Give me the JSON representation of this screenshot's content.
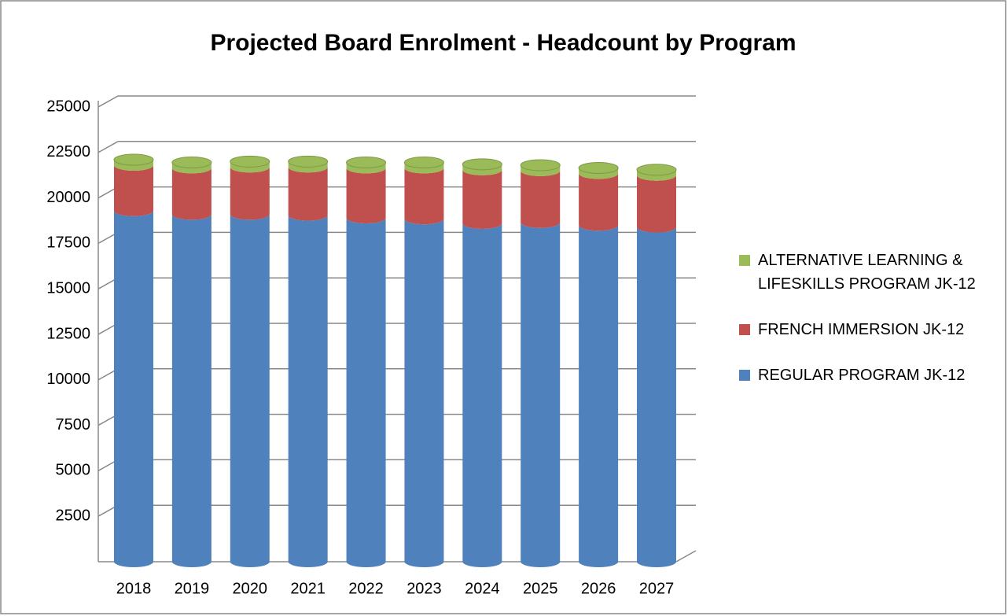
{
  "chart_data": {
    "type": "bar",
    "stacked": true,
    "title": "Projected Board Enrolment - Headcount by Program",
    "categories": [
      "2018",
      "2019",
      "2020",
      "2021",
      "2022",
      "2023",
      "2024",
      "2025",
      "2026",
      "2027"
    ],
    "series": [
      {
        "name": "REGULAR PROGRAM JK-12",
        "color": "#4f81bd",
        "values": [
          19300,
          19100,
          19100,
          19050,
          18900,
          18850,
          18600,
          18650,
          18500,
          18400
        ]
      },
      {
        "name": "FRENCH IMMERSION JK-12",
        "color": "#c0504d",
        "values": [
          2500,
          2550,
          2600,
          2650,
          2750,
          2800,
          2950,
          2850,
          2850,
          2850
        ]
      },
      {
        "name": "ALTERNATIVE LEARNING & LIFESKILLS PROGRAM JK-12",
        "color": "#9bbb59",
        "values": [
          300,
          300,
          300,
          300,
          300,
          300,
          300,
          300,
          300,
          300
        ]
      }
    ],
    "ylim": [
      0,
      25000
    ],
    "yticks": [
      2500,
      5000,
      7500,
      10000,
      12500,
      15000,
      17500,
      20000,
      22500,
      25000
    ],
    "grid": true,
    "legend": "right"
  }
}
